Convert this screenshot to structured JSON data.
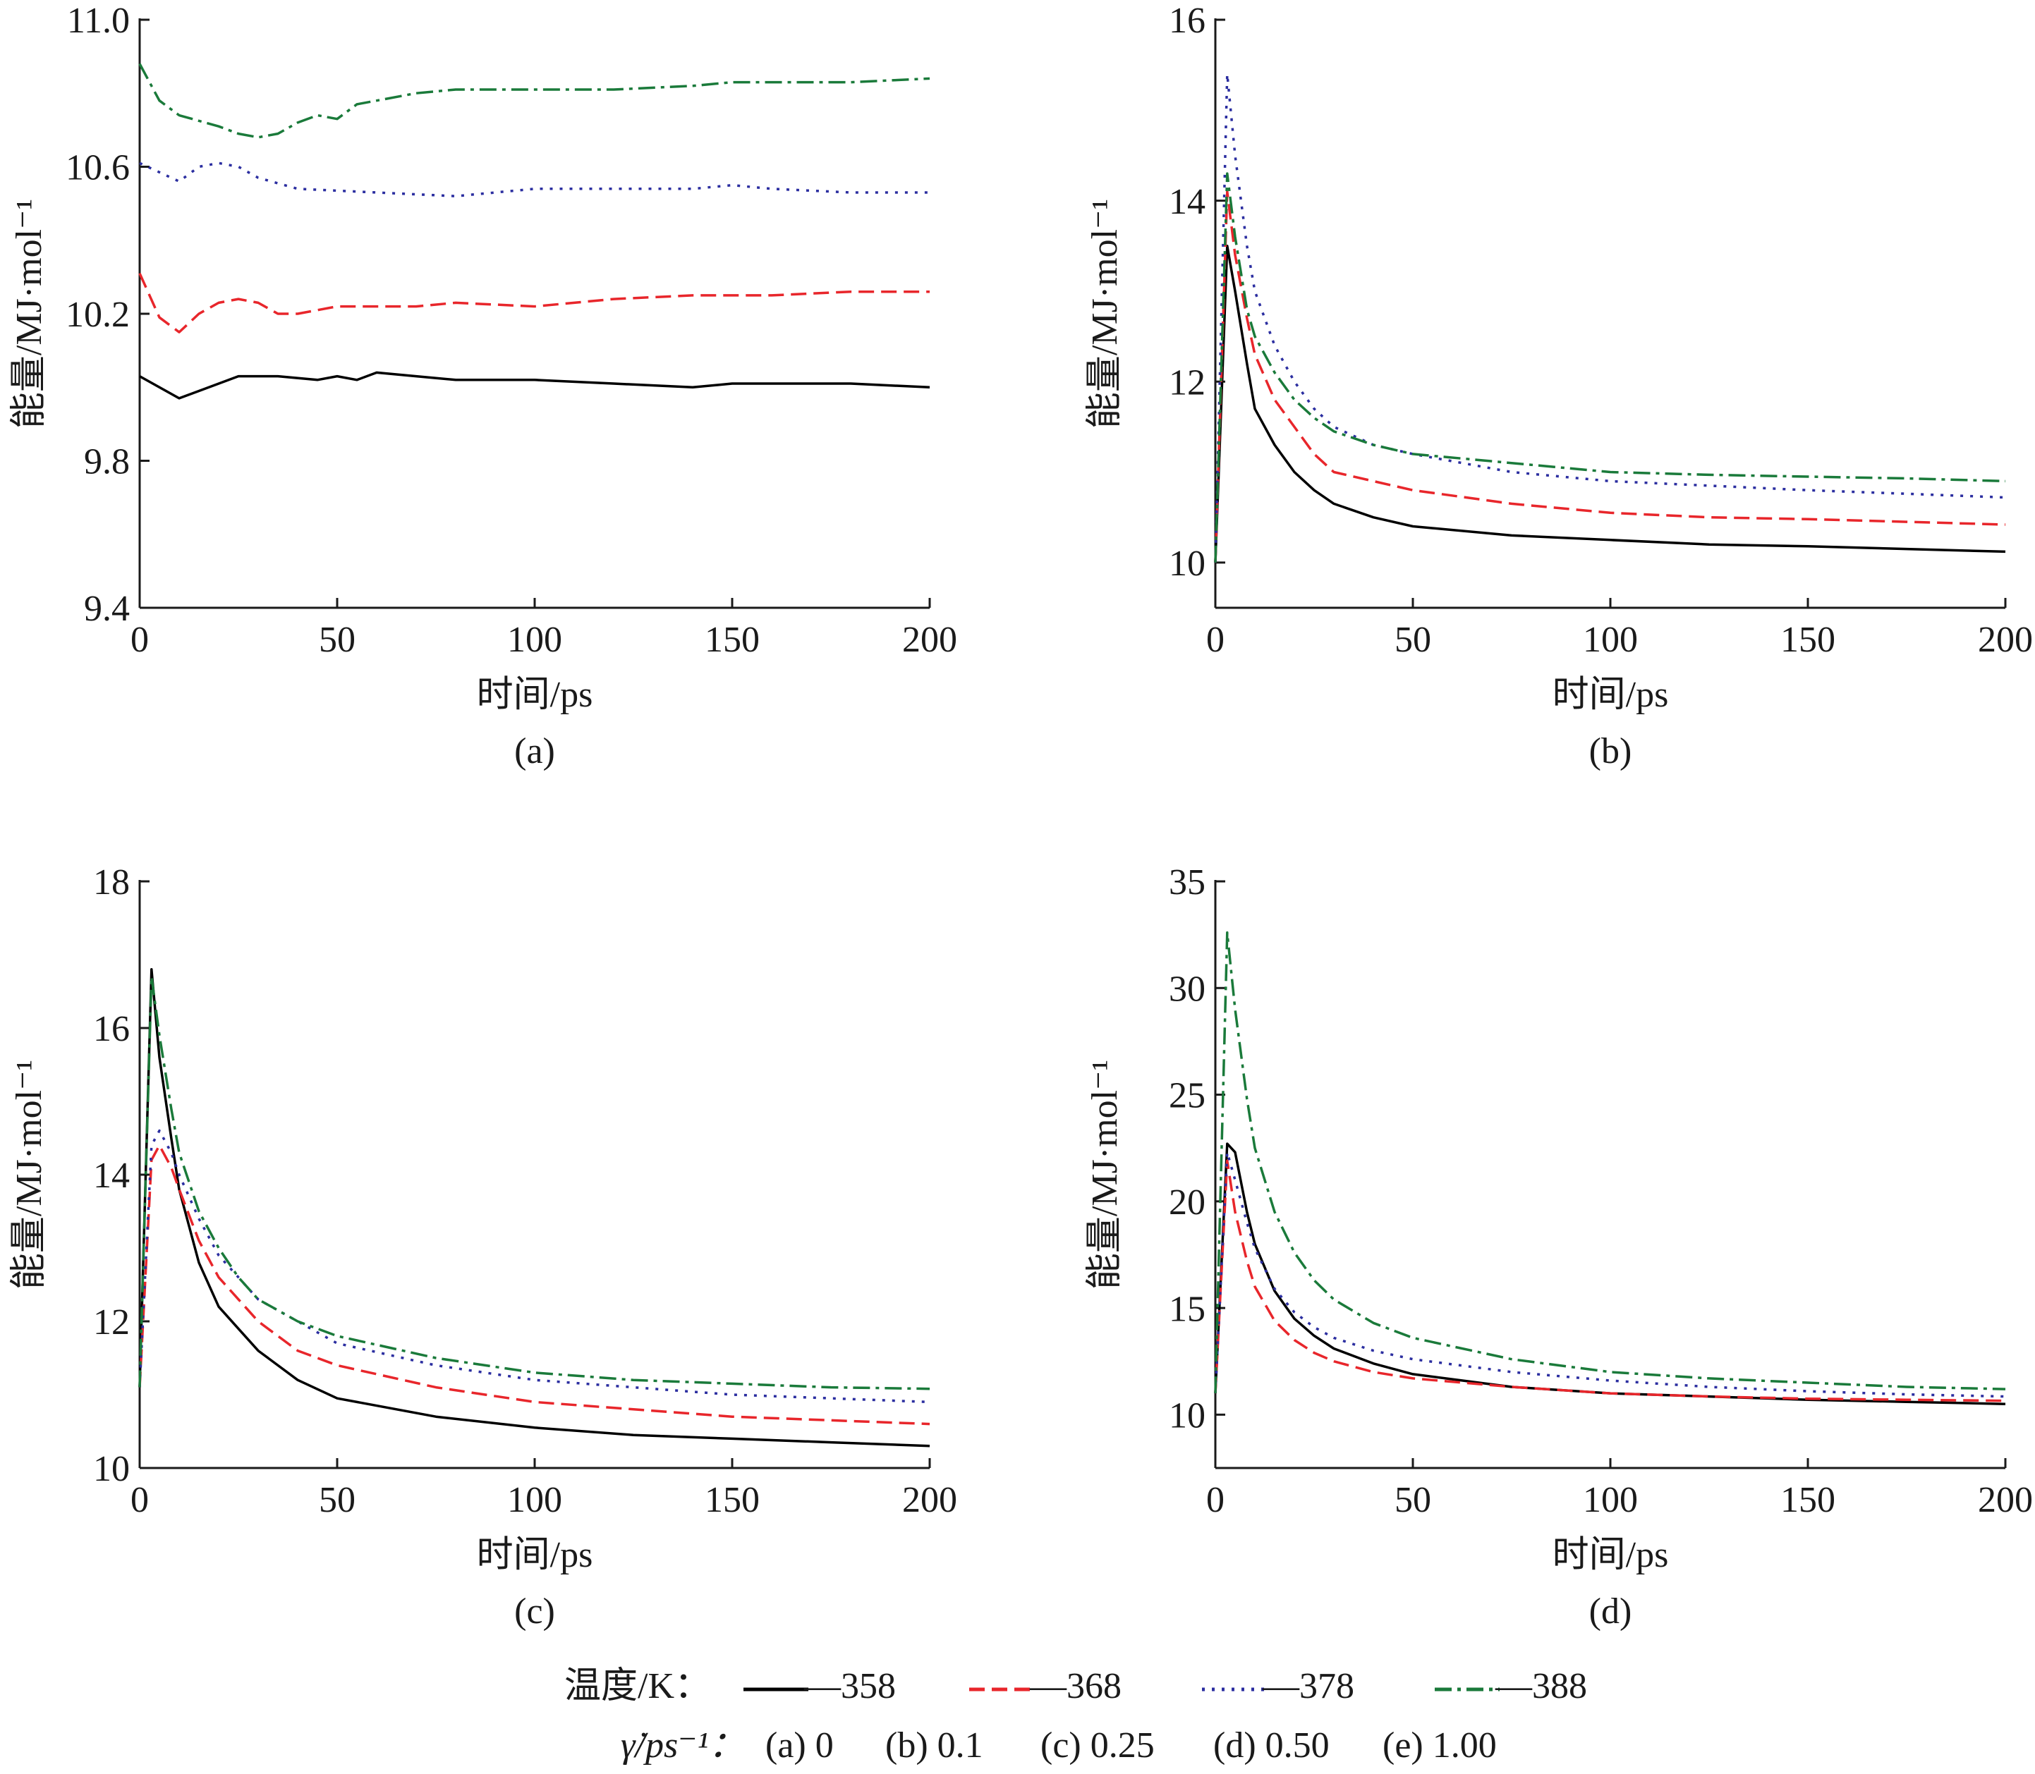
{
  "chart_data": [
    {
      "type": "line",
      "panel_label": "(a)",
      "xlabel": "时间/ps",
      "ylabel": "能量/MJ·mol⁻¹",
      "xlim": [
        0,
        200
      ],
      "ylim": [
        9.4,
        11.0
      ],
      "x_ticks": [
        0,
        50,
        100,
        150,
        200
      ],
      "y_ticks": [
        9.4,
        9.8,
        10.2,
        10.6,
        11.0
      ],
      "y_tick_labels": [
        "9.4",
        "9.8",
        "10.2",
        "10.6",
        "11.0"
      ],
      "grid": false,
      "series": [
        {
          "name": "358",
          "x": [
            0,
            10,
            15,
            25,
            35,
            45,
            50,
            55,
            60,
            70,
            80,
            100,
            120,
            140,
            150,
            160,
            180,
            200
          ],
          "values": [
            10.03,
            9.97,
            9.99,
            10.03,
            10.03,
            10.02,
            10.03,
            10.02,
            10.04,
            10.03,
            10.02,
            10.02,
            10.01,
            10.0,
            10.01,
            10.01,
            10.01,
            10.0
          ]
        },
        {
          "name": "368",
          "x": [
            0,
            5,
            10,
            15,
            20,
            25,
            30,
            35,
            40,
            50,
            60,
            70,
            80,
            100,
            120,
            140,
            160,
            180,
            200
          ],
          "values": [
            10.31,
            10.19,
            10.15,
            10.2,
            10.23,
            10.24,
            10.23,
            10.2,
            10.2,
            10.22,
            10.22,
            10.22,
            10.23,
            10.22,
            10.24,
            10.25,
            10.25,
            10.26,
            10.26
          ]
        },
        {
          "name": "378",
          "x": [
            0,
            10,
            15,
            20,
            25,
            30,
            40,
            60,
            80,
            100,
            120,
            140,
            150,
            160,
            180,
            200
          ],
          "values": [
            10.61,
            10.56,
            10.6,
            10.61,
            10.6,
            10.57,
            10.54,
            10.53,
            10.52,
            10.54,
            10.54,
            10.54,
            10.55,
            10.54,
            10.53,
            10.53
          ]
        },
        {
          "name": "388",
          "x": [
            0,
            5,
            10,
            20,
            25,
            30,
            35,
            40,
            45,
            50,
            55,
            60,
            70,
            80,
            90,
            100,
            120,
            140,
            150,
            160,
            180,
            200
          ],
          "values": [
            10.88,
            10.78,
            10.74,
            10.71,
            10.69,
            10.68,
            10.69,
            10.72,
            10.74,
            10.73,
            10.77,
            10.78,
            10.8,
            10.81,
            10.81,
            10.81,
            10.81,
            10.82,
            10.83,
            10.83,
            10.83,
            10.84
          ]
        }
      ]
    },
    {
      "type": "line",
      "panel_label": "(b)",
      "xlabel": "时间/ps",
      "ylabel": "能量/MJ·mol⁻¹",
      "xlim": [
        0,
        200
      ],
      "ylim": [
        9.5,
        16
      ],
      "x_ticks": [
        0,
        50,
        100,
        150,
        200
      ],
      "y_ticks": [
        10,
        12,
        14,
        16
      ],
      "y_tick_labels": [
        "10",
        "12",
        "14",
        "16"
      ],
      "grid": false,
      "series": [
        {
          "name": "358",
          "x": [
            0,
            3,
            5,
            8,
            10,
            15,
            20,
            25,
            30,
            40,
            50,
            75,
            100,
            125,
            150,
            175,
            200
          ],
          "values": [
            10.0,
            13.5,
            13.0,
            12.2,
            11.7,
            11.3,
            11.0,
            10.8,
            10.65,
            10.5,
            10.4,
            10.3,
            10.25,
            10.2,
            10.18,
            10.15,
            10.12
          ]
        },
        {
          "name": "368",
          "x": [
            0,
            3,
            5,
            8,
            10,
            15,
            20,
            25,
            30,
            40,
            50,
            75,
            100,
            125,
            150,
            175,
            200
          ],
          "values": [
            10.0,
            14.1,
            13.4,
            12.7,
            12.3,
            11.8,
            11.5,
            11.2,
            11.0,
            10.9,
            10.8,
            10.65,
            10.55,
            10.5,
            10.48,
            10.45,
            10.42
          ]
        },
        {
          "name": "378",
          "x": [
            0,
            3,
            5,
            8,
            10,
            15,
            20,
            25,
            30,
            40,
            50,
            75,
            100,
            125,
            150,
            175,
            200
          ],
          "values": [
            10.0,
            15.4,
            14.5,
            13.5,
            13.0,
            12.4,
            12.0,
            11.7,
            11.5,
            11.3,
            11.2,
            11.0,
            10.9,
            10.85,
            10.8,
            10.76,
            10.72
          ]
        },
        {
          "name": "388",
          "x": [
            0,
            3,
            5,
            8,
            10,
            15,
            20,
            25,
            30,
            40,
            50,
            75,
            100,
            125,
            150,
            175,
            200
          ],
          "values": [
            10.0,
            14.3,
            13.6,
            12.8,
            12.5,
            12.1,
            11.8,
            11.6,
            11.45,
            11.3,
            11.2,
            11.1,
            11.0,
            10.97,
            10.95,
            10.93,
            10.9
          ]
        }
      ]
    },
    {
      "type": "line",
      "panel_label": "(c)",
      "xlabel": "时间/ps",
      "ylabel": "能量/MJ·mol⁻¹",
      "xlim": [
        0,
        200
      ],
      "ylim": [
        10,
        18
      ],
      "x_ticks": [
        0,
        50,
        100,
        150,
        200
      ],
      "y_ticks": [
        10,
        12,
        14,
        16,
        18
      ],
      "y_tick_labels": [
        "10",
        "12",
        "14",
        "16",
        "18"
      ],
      "grid": false,
      "series": [
        {
          "name": "358",
          "x": [
            0,
            3,
            5,
            8,
            10,
            15,
            20,
            25,
            30,
            40,
            50,
            75,
            100,
            125,
            150,
            175,
            200
          ],
          "values": [
            11.1,
            16.8,
            15.6,
            14.5,
            13.8,
            12.8,
            12.2,
            11.9,
            11.6,
            11.2,
            10.95,
            10.7,
            10.55,
            10.45,
            10.4,
            10.35,
            10.3
          ]
        },
        {
          "name": "368",
          "x": [
            0,
            3,
            5,
            8,
            10,
            15,
            20,
            25,
            30,
            40,
            50,
            75,
            100,
            125,
            150,
            175,
            200
          ],
          "values": [
            11.1,
            14.2,
            14.4,
            14.1,
            13.8,
            13.1,
            12.6,
            12.3,
            12.0,
            11.6,
            11.4,
            11.1,
            10.9,
            10.8,
            10.7,
            10.65,
            10.6
          ]
        },
        {
          "name": "378",
          "x": [
            0,
            3,
            5,
            8,
            10,
            15,
            20,
            25,
            30,
            40,
            50,
            75,
            100,
            125,
            150,
            175,
            200
          ],
          "values": [
            11.1,
            14.4,
            14.6,
            14.3,
            14.0,
            13.4,
            12.9,
            12.6,
            12.3,
            12.0,
            11.7,
            11.4,
            11.2,
            11.1,
            11.0,
            10.95,
            10.9
          ]
        },
        {
          "name": "388",
          "x": [
            0,
            3,
            5,
            8,
            10,
            15,
            20,
            25,
            30,
            40,
            50,
            75,
            100,
            125,
            150,
            175,
            200
          ],
          "values": [
            11.1,
            16.7,
            15.9,
            14.9,
            14.3,
            13.5,
            13.0,
            12.6,
            12.3,
            12.0,
            11.8,
            11.5,
            11.3,
            11.2,
            11.15,
            11.1,
            11.08
          ]
        }
      ]
    },
    {
      "type": "line",
      "panel_label": "(d)",
      "xlabel": "时间/ps",
      "ylabel": "能量/MJ·mol⁻¹",
      "xlim": [
        0,
        200
      ],
      "ylim": [
        7.5,
        35
      ],
      "x_ticks": [
        0,
        50,
        100,
        150,
        200
      ],
      "y_ticks": [
        10,
        15,
        20,
        25,
        30,
        35
      ],
      "y_tick_labels": [
        "10",
        "15",
        "20",
        "25",
        "30",
        "35"
      ],
      "grid": false,
      "series": [
        {
          "name": "358",
          "x": [
            0,
            3,
            5,
            8,
            10,
            15,
            20,
            25,
            30,
            40,
            50,
            75,
            100,
            125,
            150,
            175,
            200
          ],
          "values": [
            11.0,
            22.7,
            22.3,
            19.5,
            18.0,
            15.8,
            14.5,
            13.7,
            13.1,
            12.4,
            11.9,
            11.3,
            11.0,
            10.85,
            10.7,
            10.6,
            10.5
          ]
        },
        {
          "name": "368",
          "x": [
            0,
            3,
            5,
            8,
            10,
            15,
            20,
            25,
            30,
            40,
            50,
            75,
            100,
            125,
            150,
            175,
            200
          ],
          "values": [
            11.0,
            21.9,
            19.5,
            17.2,
            16.0,
            14.4,
            13.5,
            12.9,
            12.5,
            12.0,
            11.7,
            11.3,
            11.0,
            10.85,
            10.75,
            10.7,
            10.65
          ]
        },
        {
          "name": "378",
          "x": [
            0,
            3,
            5,
            8,
            10,
            15,
            20,
            25,
            30,
            40,
            50,
            75,
            100,
            125,
            150,
            175,
            200
          ],
          "values": [
            11.0,
            22.3,
            21.0,
            19.0,
            17.8,
            15.9,
            14.8,
            14.1,
            13.6,
            13.0,
            12.6,
            12.0,
            11.6,
            11.3,
            11.1,
            10.95,
            10.85
          ]
        },
        {
          "name": "388",
          "x": [
            0,
            3,
            5,
            8,
            10,
            15,
            20,
            25,
            30,
            40,
            50,
            75,
            100,
            125,
            150,
            175,
            200
          ],
          "values": [
            11.0,
            32.6,
            29.0,
            24.8,
            22.5,
            19.5,
            17.6,
            16.3,
            15.4,
            14.3,
            13.6,
            12.6,
            12.0,
            11.7,
            11.5,
            11.3,
            11.2
          ]
        }
      ]
    }
  ],
  "series_styles": [
    {
      "name": "358",
      "color": "#000000",
      "dash": "solid"
    },
    {
      "name": "368",
      "color": "#e8262b",
      "dash": "dashed"
    },
    {
      "name": "378",
      "color": "#2b2ea0",
      "dash": "dotted"
    },
    {
      "name": "388",
      "color": "#1a7a3a",
      "dash": "dash-dot"
    }
  ],
  "legend": {
    "temperature_label": "温度/K：",
    "entries": [
      "—358",
      "—368",
      "—378",
      "—388"
    ],
    "shear_label": "γ̇/ps⁻¹：",
    "shear_entries": [
      "(a) 0",
      "(b) 0.1",
      "(c) 0.25",
      "(d) 0.50",
      "(e) 1.00"
    ]
  }
}
